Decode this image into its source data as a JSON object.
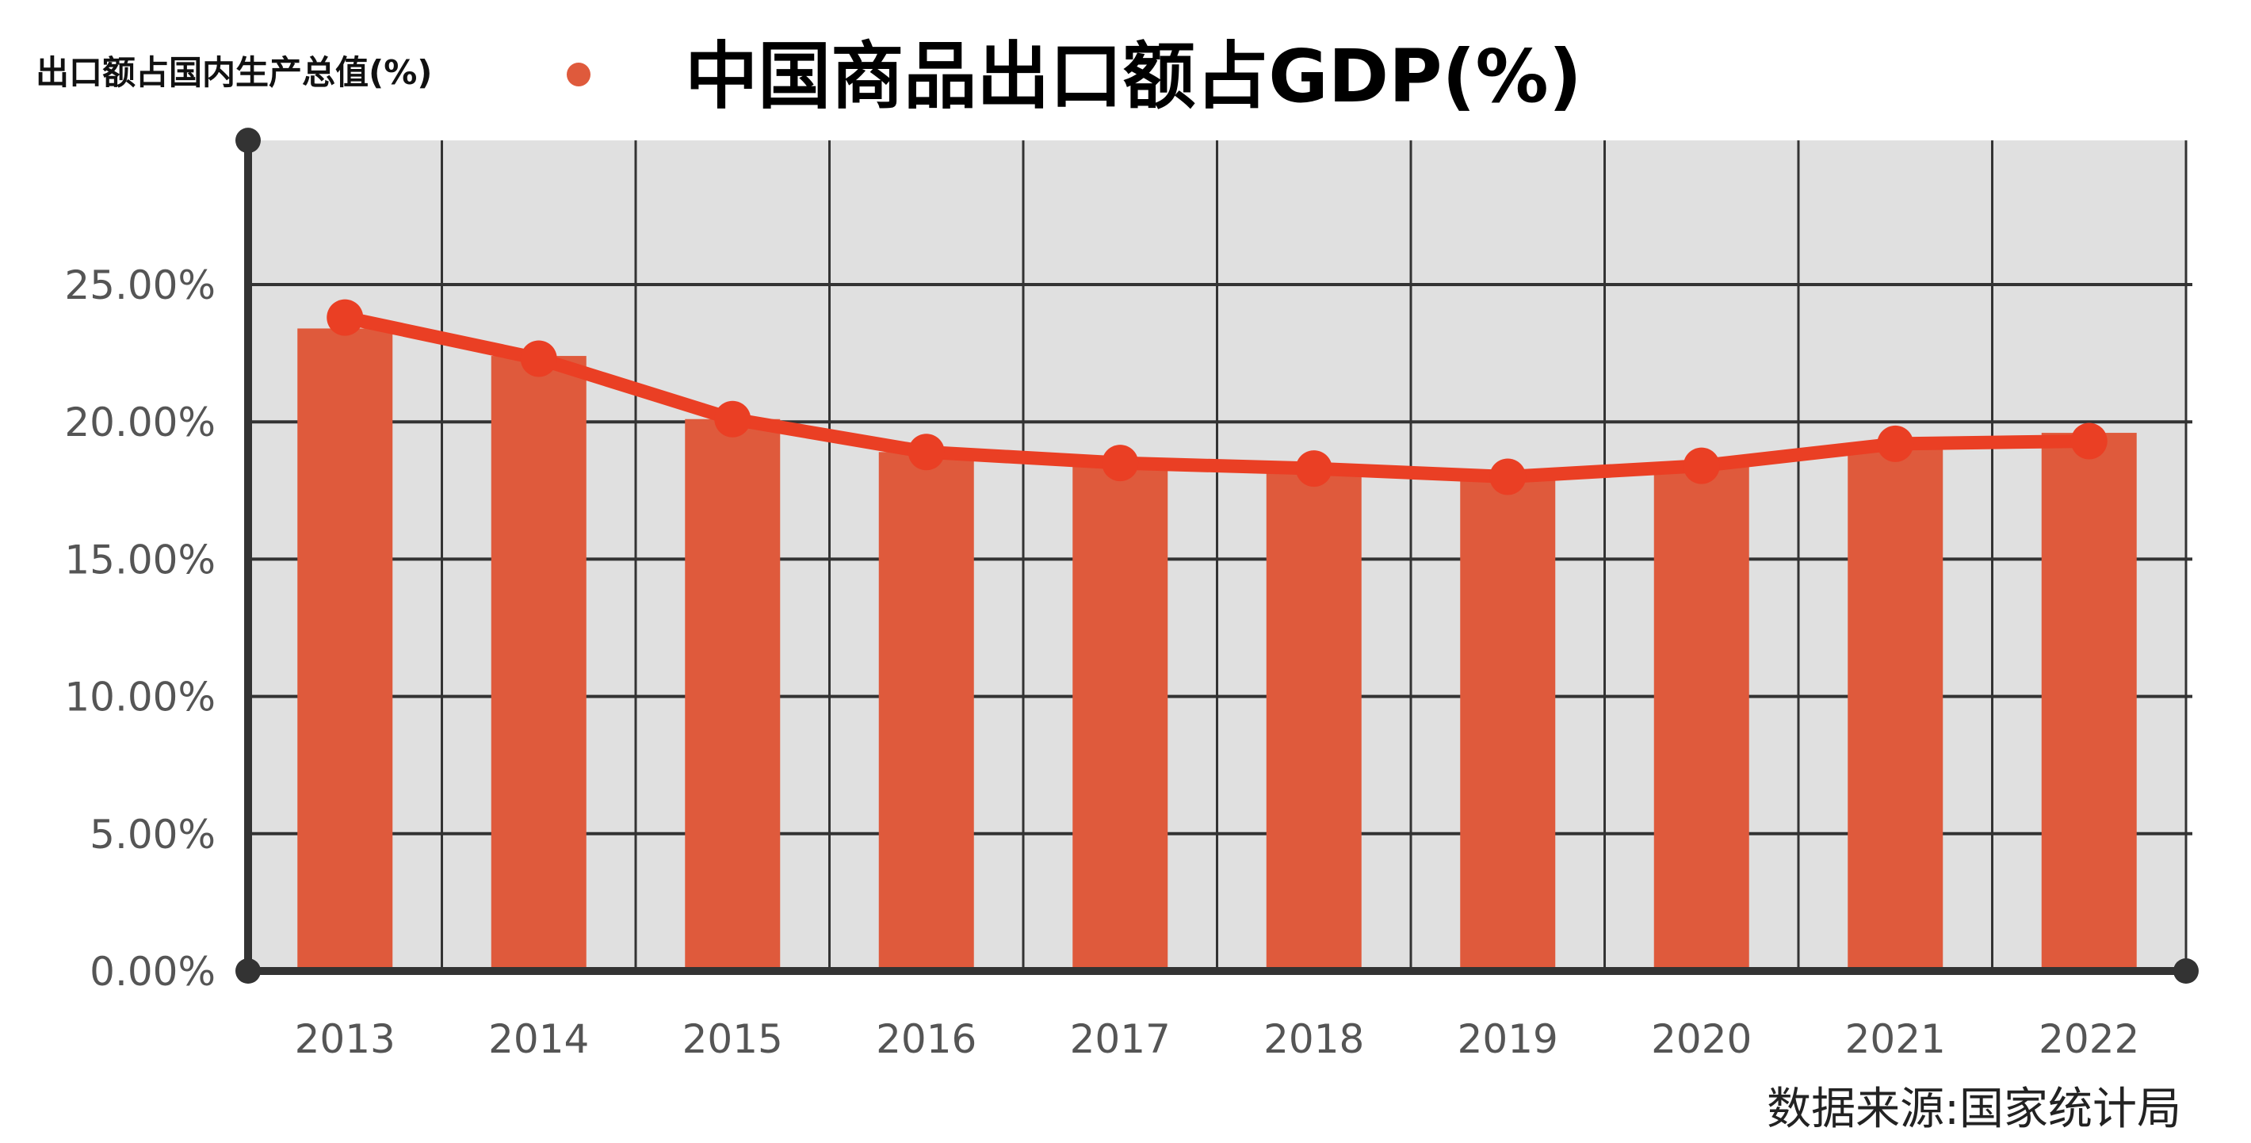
{
  "chart_data": {
    "type": "bar",
    "title": "中国商品出口额占GDP(%)",
    "source": "数据来源:国家统计局",
    "categories": [
      "2013",
      "2014",
      "2015",
      "2016",
      "2017",
      "2018",
      "2019",
      "2020",
      "2021",
      "2022"
    ],
    "series": [
      {
        "type": "bar",
        "values": [
          23.4,
          22.4,
          20.1,
          18.9,
          18.6,
          18.4,
          18.1,
          18.4,
          19.1,
          19.6
        ],
        "color": "#df5a3c"
      },
      {
        "type": "line",
        "name": "出口额占国内生产总值(%)",
        "values": [
          23.8,
          22.3,
          20.1,
          18.9,
          18.5,
          18.3,
          18.0,
          18.4,
          19.2,
          19.3
        ],
        "color": "#ea3f24"
      }
    ],
    "yticks": [
      "0.00%",
      "5.00%",
      "10.00%",
      "15.00%",
      "20.00%",
      "25.00%"
    ],
    "ytick_values": [
      0,
      5,
      10,
      15,
      20,
      25
    ],
    "ylim": [
      0,
      30.25
    ],
    "grid": true,
    "legend_position": "top-left",
    "plot_background": "#e0e0e0",
    "axis_color": "#333333"
  }
}
